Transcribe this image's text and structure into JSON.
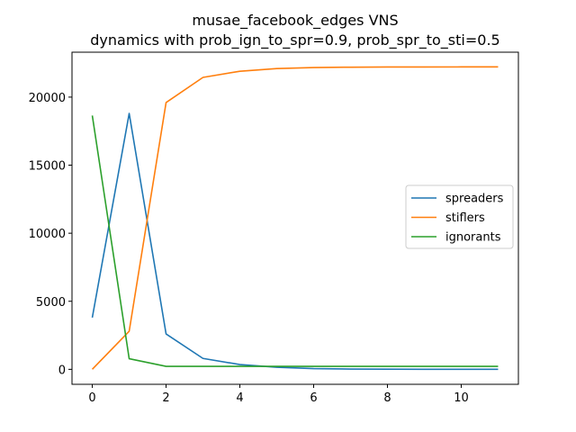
{
  "chart_data": {
    "type": "line",
    "title_line1": "musae_facebook_edges VNS",
    "title_line2": "dynamics with prob_ign_to_spr=0.9, prob_spr_to_sti=0.5",
    "xlabel": "",
    "ylabel": "",
    "xlim": [
      -0.55,
      11.55
    ],
    "ylim": [
      -1100,
      23300
    ],
    "xticks": [
      0,
      2,
      4,
      6,
      8,
      10
    ],
    "yticks": [
      0,
      5000,
      10000,
      15000,
      20000
    ],
    "grid": false,
    "legend_position": "center-right",
    "x": [
      0,
      1,
      2,
      3,
      4,
      5,
      6,
      7,
      8,
      9,
      10,
      11
    ],
    "series": [
      {
        "name": "spreaders",
        "color": "#1f77b4",
        "values": [
          3800,
          18800,
          2600,
          800,
          350,
          150,
          50,
          20,
          10,
          5,
          2,
          0
        ]
      },
      {
        "name": "stiflers",
        "color": "#ff7f0e",
        "values": [
          0,
          2800,
          19600,
          21450,
          21900,
          22100,
          22170,
          22200,
          22210,
          22215,
          22218,
          22220
        ]
      },
      {
        "name": "ignorants",
        "color": "#2ca02c",
        "values": [
          18650,
          780,
          220,
          220,
          220,
          220,
          220,
          220,
          220,
          220,
          220,
          220
        ]
      }
    ]
  }
}
